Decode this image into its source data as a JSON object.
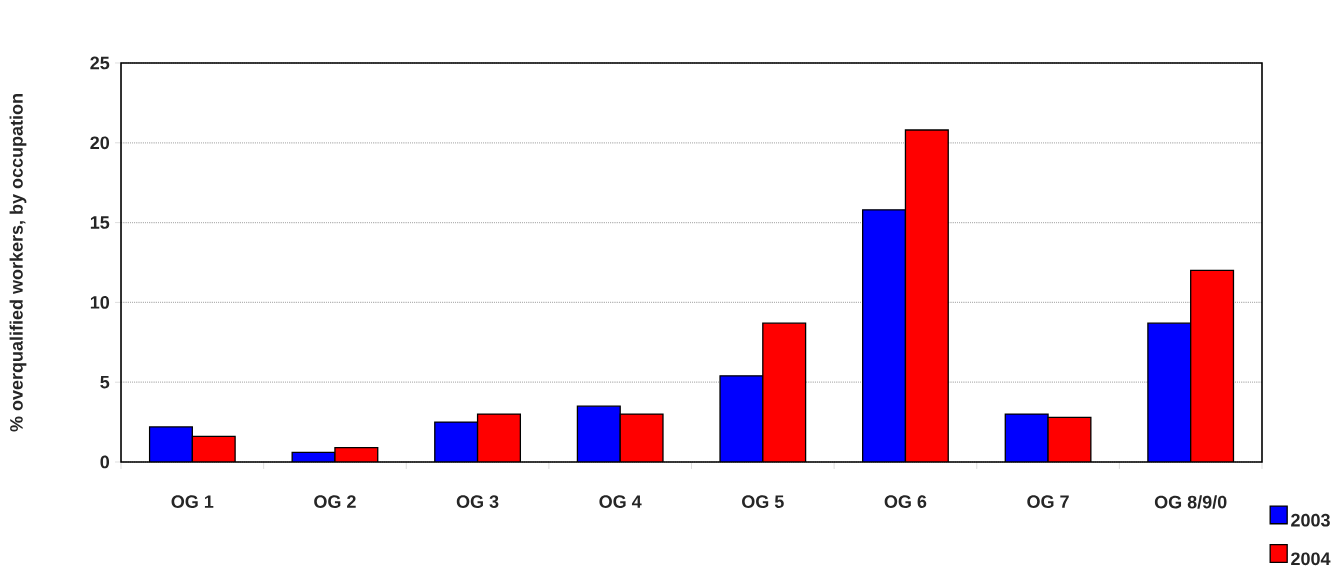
{
  "chart_data": {
    "type": "bar",
    "ylabel": "% overqualified workers, by occupation",
    "categories": [
      "OG 1",
      "OG 2",
      "OG 3",
      "OG 4",
      "OG 5",
      "OG 6",
      "OG 7",
      "OG 8/9/0"
    ],
    "series": [
      {
        "name": "2003",
        "color": "#0000ff",
        "values": [
          2.2,
          0.6,
          2.5,
          3.5,
          5.4,
          15.8,
          3.0,
          8.7
        ]
      },
      {
        "name": "2004",
        "color": "#ff0000",
        "values": [
          1.6,
          0.9,
          3.0,
          3.0,
          8.7,
          20.8,
          2.8,
          12.0
        ]
      }
    ],
    "ylim": [
      0,
      25
    ],
    "yticks": [
      0,
      5,
      10,
      15,
      20,
      25
    ],
    "grid": "y",
    "legend": "bottom right"
  }
}
